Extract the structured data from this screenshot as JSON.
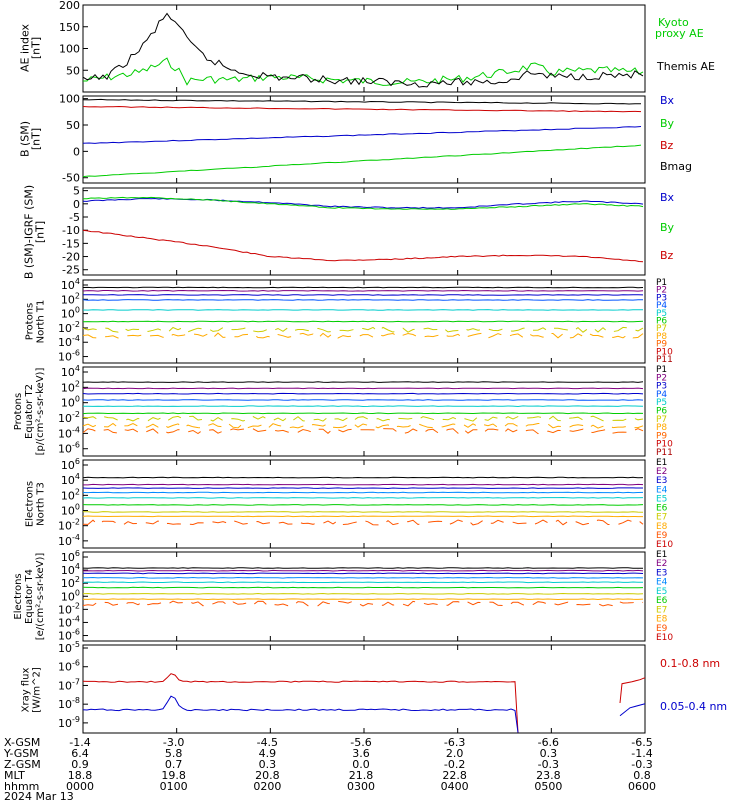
{
  "chart_data": [
    {
      "type": "line",
      "ylabel": "AE index [nT]",
      "yticks": [
        50,
        100,
        150,
        200
      ],
      "ylim": [
        0,
        200
      ],
      "x_hours": [
        0,
        0.3,
        0.6,
        0.9,
        1.0,
        1.1,
        1.3,
        1.6,
        2.0,
        2.5,
        3.0,
        3.5,
        4.0,
        4.5,
        4.8,
        5.0,
        5.5,
        6.0
      ],
      "series": [
        {
          "name": "Kyoto proxy AE",
          "color": "#00cc00",
          "values": [
            25,
            35,
            45,
            70,
            55,
            25,
            30,
            28,
            35,
            30,
            25,
            22,
            30,
            45,
            60,
            45,
            50,
            45
          ]
        },
        {
          "name": "Themis AE",
          "color": "#000000",
          "values": [
            25,
            40,
            95,
            180,
            160,
            120,
            80,
            50,
            35,
            30,
            25,
            20,
            22,
            25,
            45,
            35,
            38,
            40
          ]
        }
      ]
    },
    {
      "type": "line",
      "ylabel": "B (SM) [nT]",
      "yticks": [
        -50,
        0,
        50,
        100
      ],
      "ylim": [
        -60,
        105
      ],
      "series": [
        {
          "name": "Bx",
          "color": "#0000cc",
          "start": 15,
          "end": 47
        },
        {
          "name": "By",
          "color": "#00cc00",
          "start": -48,
          "end": 12
        },
        {
          "name": "Bz",
          "color": "#cc0000",
          "start": 85,
          "end": 75
        },
        {
          "name": "Bmag",
          "color": "#000000",
          "start": 98,
          "end": 90
        }
      ]
    },
    {
      "type": "line",
      "ylabel": "B (SM)-IGRF (SM) [nT]",
      "yticks": [
        -25,
        -20,
        -15,
        -10,
        -5,
        0,
        5
      ],
      "ylim": [
        -27,
        6
      ],
      "series": [
        {
          "name": "Bx",
          "color": "#0000cc",
          "values": [
            1,
            2,
            1.5,
            0.5,
            -1,
            -1.5,
            -1.5,
            0,
            1,
            0
          ]
        },
        {
          "name": "By",
          "color": "#00cc00",
          "values": [
            2,
            2.5,
            1.5,
            0,
            -1.5,
            -2,
            -2,
            -1,
            0,
            -1
          ]
        },
        {
          "name": "Bz",
          "color": "#cc0000",
          "values": [
            -10,
            -13,
            -16,
            -20,
            -21.5,
            -21,
            -20,
            -19.5,
            -20,
            -22
          ]
        }
      ]
    },
    {
      "type": "line",
      "ylabel": "Protons North T1",
      "ytick_labels": [
        "10^4",
        "10^2",
        "10^0",
        "10^-2",
        "10^-4",
        "10^-6"
      ],
      "legend": [
        "P1",
        "P2",
        "P3",
        "P4",
        "P5",
        "P6",
        "P7",
        "P8",
        "P9",
        "P10",
        "P11"
      ]
    },
    {
      "type": "line",
      "ylabel": "Protons Equator T2 [p/(cm^2-s-sr-keV)]",
      "ytick_labels": [
        "10^4",
        "10^2",
        "10^0",
        "10^-2",
        "10^-4",
        "10^-6"
      ],
      "legend": [
        "P1",
        "P2",
        "P3",
        "P4",
        "P5",
        "P6",
        "P7",
        "P8",
        "P9",
        "P10",
        "P11"
      ]
    },
    {
      "type": "line",
      "ylabel": "Electrons North T3",
      "ytick_labels": [
        "10^6",
        "10^4",
        "10^2",
        "10^0",
        "10^-2",
        "10^-4"
      ],
      "legend": [
        "E1",
        "E2",
        "E3",
        "E4",
        "E5",
        "E6",
        "E7",
        "E8",
        "E9",
        "E10"
      ]
    },
    {
      "type": "line",
      "ylabel": "Electrons Equator T4 [e/(cm^2-s-sr-keV)]",
      "ytick_labels": [
        "10^6",
        "10^4",
        "10^2",
        "10^0",
        "10^-2",
        "10^-4",
        "10^-6"
      ],
      "legend": [
        "E1",
        "E2",
        "E3",
        "E4",
        "E5",
        "E6",
        "E7",
        "E8",
        "E9",
        "E10"
      ]
    },
    {
      "type": "line",
      "ylabel": "Xray flux [W/m^2]",
      "ytick_labels": [
        "10^-5",
        "10^-6",
        "10^-7",
        "10^-8",
        "10^-9"
      ],
      "series": [
        {
          "name": "0.1-0.8 nm",
          "color": "#cc0000"
        },
        {
          "name": "0.05-0.4 nm",
          "color": "#0000cc"
        }
      ]
    }
  ],
  "colors": {
    "P1": "#000000",
    "P2": "#800080",
    "P3": "#0000cc",
    "P4": "#0055ff",
    "P5": "#00cccc",
    "P6": "#00cc00",
    "P7": "#cccc00",
    "P8": "#ffaa00",
    "P9": "#ff6600",
    "P10": "#cc0000",
    "P11": "#aa0000",
    "E1": "#000000",
    "E2": "#800080",
    "E3": "#0000cc",
    "E4": "#0088ff",
    "E5": "#00cccc",
    "E6": "#00cc00",
    "E7": "#cccc00",
    "E8": "#ffaa00",
    "E9": "#ff5500",
    "E10": "#cc0000"
  },
  "xaxis": {
    "row_labels": [
      "X-GSM",
      "Y-GSM",
      "Z-GSM",
      "MLT",
      "hhmm",
      "2024 Mar 13"
    ],
    "columns": [
      {
        "x": "-1.4",
        "y": "6.4",
        "z": "0.9",
        "mlt": "18.8",
        "hhmm": "0000"
      },
      {
        "x": "-3.0",
        "y": "5.8",
        "z": "0.7",
        "mlt": "19.8",
        "hhmm": "0100"
      },
      {
        "x": "-4.5",
        "y": "4.9",
        "z": "0.3",
        "mlt": "20.8",
        "hhmm": "0200"
      },
      {
        "x": "-5.6",
        "y": "3.6",
        "z": "0.0",
        "mlt": "21.8",
        "hhmm": "0300"
      },
      {
        "x": "-6.3",
        "y": "2.0",
        "z": "-0.2",
        "mlt": "22.8",
        "hhmm": "0400"
      },
      {
        "x": "-6.6",
        "y": "0.3",
        "z": "-0.3",
        "mlt": "23.8",
        "hhmm": "0500"
      },
      {
        "x": "-6.5",
        "y": "-1.4",
        "z": "-0.3",
        "mlt": "0.8",
        "hhmm": "0600"
      }
    ]
  }
}
